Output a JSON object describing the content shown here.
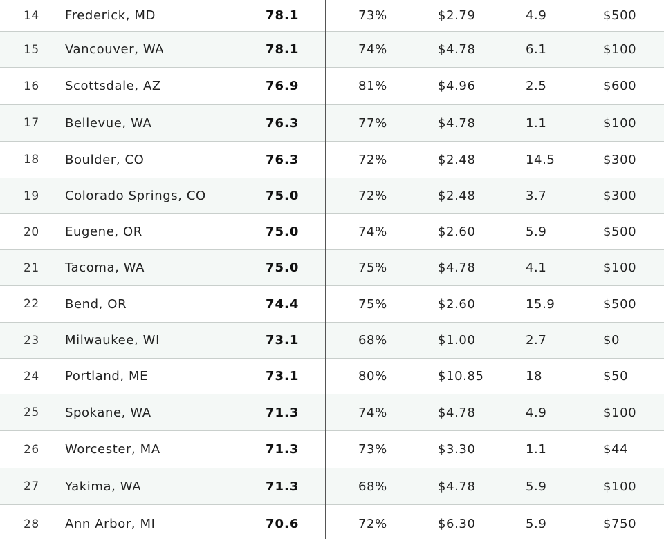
{
  "rows": [
    {
      "rank": "14",
      "city": "Frederick, MD",
      "score": "78.1",
      "pct": "73%",
      "price": "$2.79",
      "val": "4.9",
      "fee": "$500"
    },
    {
      "rank": "15",
      "city": "Vancouver, WA",
      "score": "78.1",
      "pct": "74%",
      "price": "$4.78",
      "val": "6.1",
      "fee": "$100"
    },
    {
      "rank": "16",
      "city": "Scottsdale, AZ",
      "score": "76.9",
      "pct": "81%",
      "price": "$4.96",
      "val": "2.5",
      "fee": "$600"
    },
    {
      "rank": "17",
      "city": "Bellevue, WA",
      "score": "76.3",
      "pct": "77%",
      "price": "$4.78",
      "val": "1.1",
      "fee": "$100"
    },
    {
      "rank": "18",
      "city": "Boulder, CO",
      "score": "76.3",
      "pct": "72%",
      "price": "$2.48",
      "val": "14.5",
      "fee": "$300"
    },
    {
      "rank": "19",
      "city": "Colorado Springs, CO",
      "score": "75.0",
      "pct": "72%",
      "price": "$2.48",
      "val": "3.7",
      "fee": "$300"
    },
    {
      "rank": "20",
      "city": "Eugene, OR",
      "score": "75.0",
      "pct": "74%",
      "price": "$2.60",
      "val": "5.9",
      "fee": "$500"
    },
    {
      "rank": "21",
      "city": "Tacoma, WA",
      "score": "75.0",
      "pct": "75%",
      "price": "$4.78",
      "val": "4.1",
      "fee": "$100"
    },
    {
      "rank": "22",
      "city": "Bend, OR",
      "score": "74.4",
      "pct": "75%",
      "price": "$2.60",
      "val": "15.9",
      "fee": "$500"
    },
    {
      "rank": "23",
      "city": "Milwaukee, WI",
      "score": "73.1",
      "pct": "68%",
      "price": "$1.00",
      "val": "2.7",
      "fee": "$0"
    },
    {
      "rank": "24",
      "city": "Portland, ME",
      "score": "73.1",
      "pct": "80%",
      "price": "$10.85",
      "val": "18",
      "fee": "$50"
    },
    {
      "rank": "25",
      "city": "Spokane, WA",
      "score": "71.3",
      "pct": "74%",
      "price": "$4.78",
      "val": "4.9",
      "fee": "$100"
    },
    {
      "rank": "26",
      "city": "Worcester, MA",
      "score": "71.3",
      "pct": "73%",
      "price": "$3.30",
      "val": "1.1",
      "fee": "$44"
    },
    {
      "rank": "27",
      "city": "Yakima, WA",
      "score": "71.3",
      "pct": "68%",
      "price": "$4.78",
      "val": "5.9",
      "fee": "$100"
    },
    {
      "rank": "28",
      "city": "Ann Arbor, MI",
      "score": "70.6",
      "pct": "72%",
      "price": "$6.30",
      "val": "5.9",
      "fee": "$750"
    }
  ]
}
